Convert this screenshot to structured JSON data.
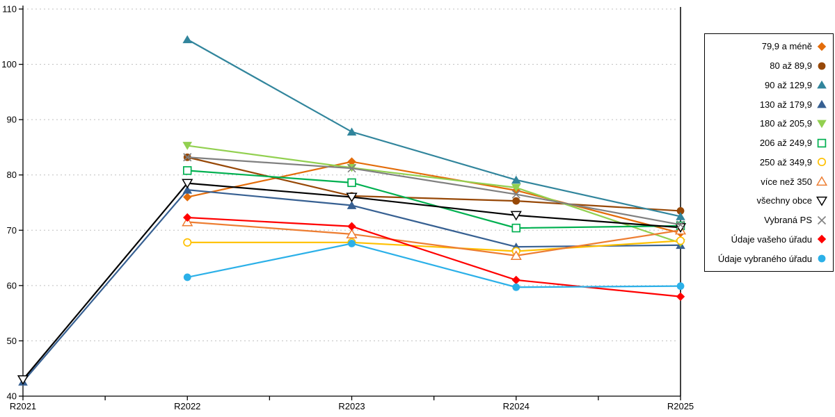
{
  "page": {
    "background": "#FFFFFF"
  },
  "axes": {
    "y_tick_labels": [
      "40",
      "50",
      "60",
      "70",
      "80",
      "90",
      "100",
      "110"
    ],
    "x_tick_labels": [
      "R2021",
      "R2022",
      "R2023",
      "R2024",
      "R2025"
    ]
  },
  "chart_data": {
    "type": "line",
    "title": "",
    "xlabel": "",
    "ylabel": "",
    "categories": [
      "R2021",
      "R2022",
      "R2023",
      "R2024",
      "R2025"
    ],
    "ylim": [
      40,
      110
    ],
    "ytick_step": 10,
    "grid": "horizontal-dashed",
    "legend_position": "right",
    "grid_color": "#BFBFBF",
    "axis_color": "#000000",
    "series": [
      {
        "label": "79,9 a méně",
        "color": "#E36C0A",
        "marker": "diamond",
        "values": [
          null,
          76.0,
          82.4,
          77.2,
          69.5
        ]
      },
      {
        "label": "80 až 89,9",
        "color": "#974807",
        "marker": "circle",
        "values": [
          null,
          83.2,
          76.2,
          75.3,
          73.5
        ]
      },
      {
        "label": "90 až 129,9",
        "color": "#31859C",
        "marker": "triangle-up",
        "values": [
          null,
          104.5,
          87.8,
          79.1,
          72.5
        ]
      },
      {
        "label": "130 až 179,9",
        "color": "#376092",
        "marker": "triangle-up",
        "values": [
          42.6,
          77.3,
          74.5,
          67.0,
          67.3
        ]
      },
      {
        "label": "180 až 205,9",
        "color": "#92D050",
        "marker": "triangle-down",
        "values": [
          null,
          85.3,
          81.3,
          77.7,
          67.7
        ]
      },
      {
        "label": "206 až 249,9",
        "color": "#00B050",
        "marker": "square-open",
        "values": [
          null,
          80.8,
          78.6,
          70.4,
          70.8
        ]
      },
      {
        "label": "250 až 349,9",
        "color": "#FFC000",
        "marker": "circle-open",
        "values": [
          null,
          67.8,
          67.8,
          66.2,
          68.1
        ]
      },
      {
        "label": "více než 350",
        "color": "#ED7D31",
        "marker": "triangle-up-open",
        "values": [
          null,
          71.5,
          69.3,
          65.4,
          70.0
        ]
      },
      {
        "label": "všechny obce",
        "color": "#000000",
        "marker": "triangle-down-open",
        "values": [
          43.0,
          78.5,
          76.0,
          72.7,
          70.5
        ]
      },
      {
        "label": "Vybraná PS",
        "color": "#808080",
        "marker": "x",
        "values": [
          null,
          83.2,
          81.2,
          76.5,
          71.0
        ]
      },
      {
        "label": "Údaje vašeho úřadu",
        "color": "#FF0000",
        "marker": "diamond",
        "values": [
          null,
          72.3,
          70.7,
          61.0,
          58.0
        ]
      },
      {
        "label": "Údaje vybraného úřadu",
        "color": "#2BB0E8",
        "marker": "circle",
        "values": [
          null,
          61.5,
          67.6,
          59.7,
          59.9
        ]
      }
    ]
  }
}
